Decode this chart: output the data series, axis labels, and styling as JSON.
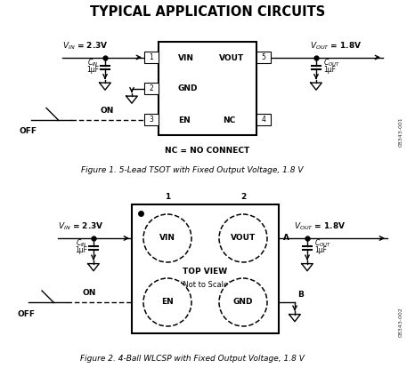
{
  "title": "TYPICAL APPLICATION CIRCUITS",
  "fig1_caption": "Figure 1. 5-Lead TSOT with Fixed Output Voltage, 1.8 V",
  "fig2_caption": "Figure 2. 4-Ball WLCSP with Fixed Output Voltage, 1.8 V",
  "nc_note": "NC = NO CONNECT",
  "ref1": "08343-001",
  "ref2": "08343-002",
  "bg_color": "#ffffff",
  "text_color": "#000000",
  "title_fontsize": 10.5,
  "label_fontsize": 6.5,
  "small_fontsize": 5.5,
  "cap_fontsize": 6.5,
  "fig_caption_fontsize": 6.5
}
